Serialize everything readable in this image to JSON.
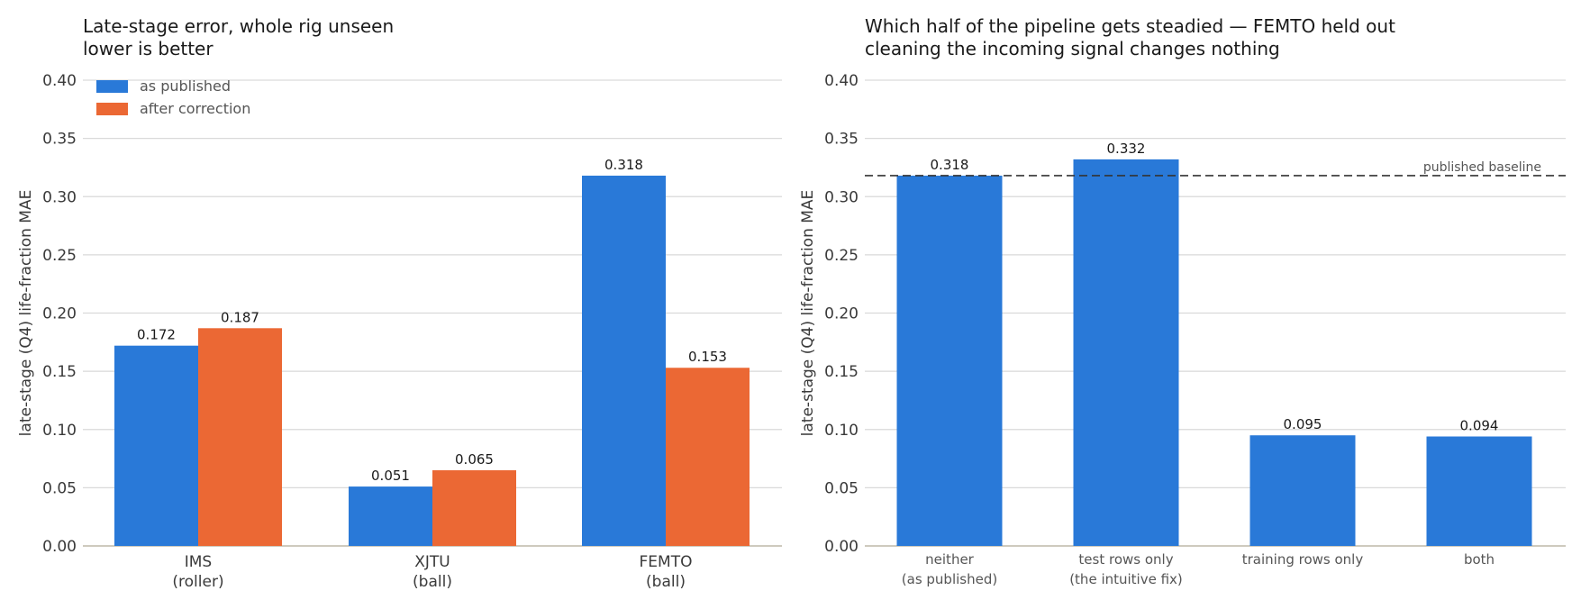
{
  "colors": {
    "published": "#2979d8",
    "corrected": "#eb6834",
    "grid": "#d9d9d9",
    "axis": "#bdb8a8",
    "baseline": "#333333"
  },
  "chart_data": [
    {
      "type": "bar",
      "title": [
        "Late-stage error, whole rig unseen",
        "lower is better"
      ],
      "xlabel": "",
      "ylabel": "late-stage (Q4) life-fraction MAE",
      "ylim": [
        0,
        0.4
      ],
      "yticks": [
        "0.00",
        "0.05",
        "0.10",
        "0.15",
        "0.20",
        "0.25",
        "0.30",
        "0.35",
        "0.40"
      ],
      "categories": [
        [
          "IMS",
          "(roller)"
        ],
        [
          "XJTU",
          "(ball)"
        ],
        [
          "FEMTO",
          "(ball)"
        ]
      ],
      "series": [
        {
          "name": "as published",
          "values": [
            0.172,
            0.051,
            0.318
          ],
          "labels": [
            "0.172",
            "0.051",
            "0.318"
          ]
        },
        {
          "name": "after correction",
          "values": [
            0.187,
            0.065,
            0.153
          ],
          "labels": [
            "0.187",
            "0.065",
            "0.153"
          ]
        }
      ],
      "legend": "top-left",
      "grid": "y"
    },
    {
      "type": "bar",
      "title": [
        "Which half of the pipeline gets steadied — FEMTO held out",
        "cleaning the incoming signal changes nothing"
      ],
      "xlabel": "",
      "ylabel": "late-stage (Q4) life-fraction MAE",
      "ylim": [
        0,
        0.4
      ],
      "yticks": [
        "0.00",
        "0.05",
        "0.10",
        "0.15",
        "0.20",
        "0.25",
        "0.30",
        "0.35",
        "0.40"
      ],
      "categories": [
        [
          "neither",
          "(as published)"
        ],
        [
          "test rows only",
          "(the intuitive fix)"
        ],
        [
          "training rows only"
        ],
        [
          "both"
        ]
      ],
      "values": [
        0.318,
        0.332,
        0.095,
        0.094
      ],
      "labels": [
        "0.318",
        "0.332",
        "0.095",
        "0.094"
      ],
      "reference_line": {
        "value": 0.318,
        "label": "published baseline",
        "style": "dashed"
      },
      "grid": "y"
    }
  ]
}
